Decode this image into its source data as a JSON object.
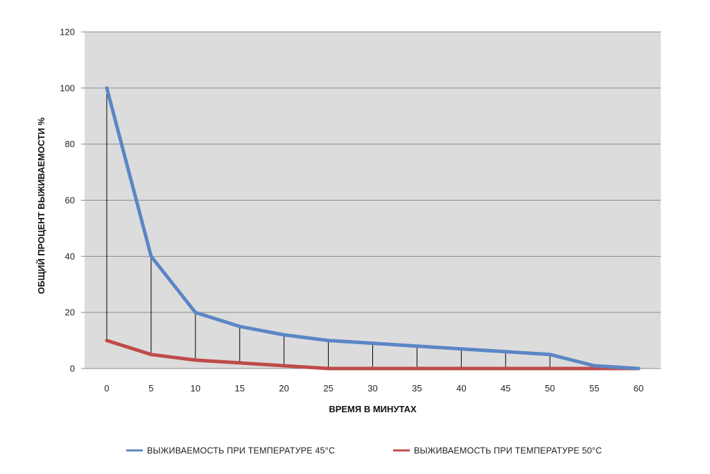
{
  "chart_data": {
    "type": "line",
    "title": "",
    "xlabel": "ВРЕМЯ В МИНУТАХ",
    "ylabel": "ОБЩИЙ ПРОЦЕНТ ВЫЖИВАЕМОСТИ %",
    "x": [
      0,
      5,
      10,
      15,
      20,
      25,
      30,
      35,
      40,
      45,
      50,
      55,
      60
    ],
    "xlim": [
      0,
      60
    ],
    "ylim": [
      0,
      120
    ],
    "yticks": [
      0,
      20,
      40,
      60,
      80,
      100,
      120
    ],
    "grid": true,
    "legend_position": "bottom",
    "drop_lines": true,
    "series": [
      {
        "name": "ВЫЖИВАЕМОСТЬ ПРИ ТЕМПЕРАТУРЕ 45°С",
        "color": "#5b86c5",
        "values": [
          100,
          40,
          20,
          15,
          12,
          10,
          9,
          8,
          7,
          6,
          5,
          1,
          0
        ]
      },
      {
        "name": "ВЫЖИВАЕМОСТЬ ПРИ ТЕМПЕРАТУРЕ 50°С",
        "color": "#bf4b49",
        "values": [
          10,
          5,
          3,
          2,
          1,
          0,
          0,
          0,
          0,
          0,
          0,
          0,
          0
        ]
      }
    ],
    "plot_background": "#dcdcdc",
    "gridline_color": "#8a8a8a",
    "drop_line_color": "#000000"
  }
}
